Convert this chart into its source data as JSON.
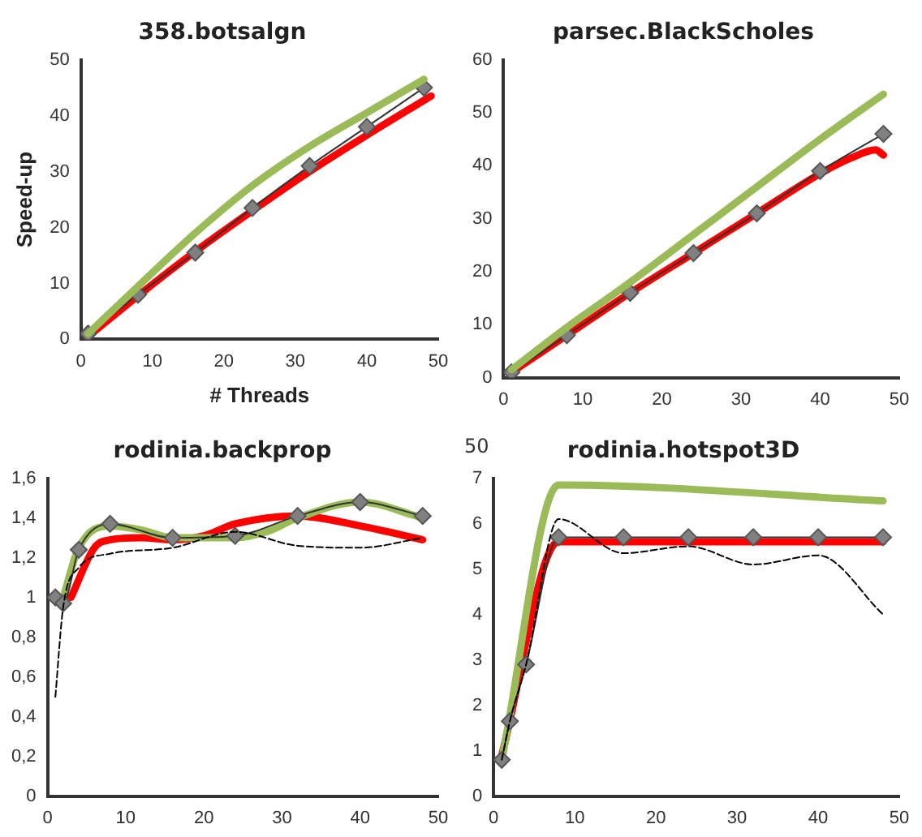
{
  "chart_data": [
    {
      "type": "line",
      "title": "358.botsalgn",
      "xlabel": "# Threads",
      "ylabel": "Speed-up",
      "xlim": [
        0,
        50
      ],
      "xticks": [
        0,
        10,
        20,
        30,
        40,
        50
      ],
      "ylim": [
        0,
        50
      ],
      "yticks": [
        0,
        10,
        20,
        30,
        40,
        50
      ],
      "grid": false,
      "legend": false,
      "series": [
        {
          "color": "#9bbb59",
          "marker": "none",
          "x": [
            1,
            8,
            16,
            24,
            32,
            40,
            48
          ],
          "values": [
            1,
            9.5,
            19,
            27.5,
            34.5,
            40.5,
            46.5
          ]
        },
        {
          "color": "#808080",
          "marker": "diamond",
          "x": [
            1,
            8,
            16,
            24,
            32,
            40,
            48
          ],
          "values": [
            1,
            8,
            15.5,
            23.5,
            31,
            38,
            45
          ]
        },
        {
          "color": "#ff0000",
          "marker": "none",
          "x": [
            1,
            8,
            16,
            24,
            32,
            40,
            49
          ],
          "values": [
            0.5,
            7.8,
            15.7,
            23,
            30,
            36.5,
            43.5
          ]
        }
      ]
    },
    {
      "type": "line",
      "title": "parsec.BlackScholes",
      "xlim": [
        0,
        50
      ],
      "xticks": [
        0,
        10,
        20,
        30,
        40,
        50
      ],
      "ylim": [
        0,
        60
      ],
      "yticks": [
        0,
        10,
        20,
        30,
        40,
        50,
        60
      ],
      "grid": false,
      "legend": false,
      "series": [
        {
          "color": "#9bbb59",
          "marker": "none",
          "x": [
            1,
            8,
            16,
            24,
            32,
            40,
            48
          ],
          "values": [
            1.5,
            9.5,
            18,
            27,
            36,
            45,
            53.5
          ]
        },
        {
          "color": "#808080",
          "marker": "diamond",
          "x": [
            1,
            8,
            16,
            24,
            32,
            40,
            48
          ],
          "values": [
            1,
            8,
            16,
            23.5,
            31,
            39,
            46
          ]
        },
        {
          "color": "#ff0000",
          "marker": "none",
          "x": [
            1,
            8,
            16,
            24,
            32,
            40,
            44,
            47,
            48
          ],
          "values": [
            1,
            8,
            16,
            23.5,
            31,
            38.5,
            41.5,
            43,
            42
          ]
        }
      ]
    },
    {
      "type": "line",
      "title": "rodinia.backprop",
      "xlim": [
        0,
        50
      ],
      "xticks": [
        0,
        10,
        20,
        30,
        40,
        50
      ],
      "ylim": [
        0,
        1.6
      ],
      "yticks": [
        0,
        {
          "value": 0.2,
          "label": "0,2"
        },
        {
          "value": 0.4,
          "label": "0,4"
        },
        {
          "value": 0.6,
          "label": "0,6"
        },
        {
          "value": 0.8,
          "label": "0,8"
        },
        1,
        {
          "value": 1.2,
          "label": "1,2"
        },
        {
          "value": 1.4,
          "label": "1,4"
        },
        {
          "value": 1.6,
          "label": "1,6"
        }
      ],
      "grid": false,
      "legend": false,
      "series": [
        {
          "color": "#000000",
          "marker": "none",
          "line_style": "dashed",
          "x": [
            1,
            2,
            4,
            8,
            16,
            24,
            32,
            40,
            48
          ],
          "values": [
            0.5,
            0.95,
            1.15,
            1.22,
            1.25,
            1.33,
            1.26,
            1.25,
            1.3
          ]
        },
        {
          "color": "#808080",
          "marker": "diamond",
          "x": [
            1,
            2,
            4,
            8,
            16,
            24,
            32,
            40,
            48
          ],
          "values": [
            1,
            0.97,
            1.24,
            1.37,
            1.3,
            1.31,
            1.41,
            1.48,
            1.41
          ]
        },
        {
          "color": "#9bbb59",
          "marker": "none",
          "x": [
            2,
            4,
            8,
            12,
            16,
            24,
            28,
            32,
            40,
            48
          ],
          "values": [
            1,
            1.25,
            1.36,
            1.34,
            1.3,
            1.3,
            1.33,
            1.4,
            1.48,
            1.4
          ]
        },
        {
          "color": "#ff0000",
          "marker": "none",
          "x": [
            3,
            6,
            8,
            12,
            16,
            20,
            24,
            32,
            40,
            48
          ],
          "values": [
            1,
            1.25,
            1.29,
            1.3,
            1.29,
            1.31,
            1.37,
            1.41,
            1.36,
            1.29
          ]
        }
      ]
    },
    {
      "type": "line",
      "title": "rodinia.hotspot3D",
      "annotations": [
        "50"
      ],
      "xlim": [
        0,
        50
      ],
      "xticks": [
        0,
        10,
        20,
        30,
        40,
        50
      ],
      "ylim": [
        0,
        7
      ],
      "yticks": [
        0,
        1,
        2,
        3,
        4,
        5,
        6,
        7
      ],
      "grid": false,
      "legend": false,
      "series": [
        {
          "color": "#000000",
          "marker": "none",
          "line_style": "dashed",
          "x": [
            1,
            2,
            4,
            8,
            16,
            24,
            32,
            40,
            48
          ],
          "values": [
            0.8,
            1.65,
            2.9,
            6.1,
            5.35,
            5.5,
            5.1,
            5.3,
            4.0
          ]
        },
        {
          "color": "#808080",
          "marker": "diamond",
          "x": [
            1,
            2,
            4,
            8,
            16,
            24,
            32,
            40,
            48
          ],
          "values": [
            0.8,
            1.65,
            2.9,
            5.7,
            5.7,
            5.7,
            5.7,
            5.7,
            5.7
          ]
        },
        {
          "color": "#9bbb59",
          "marker": "none",
          "x": [
            1,
            8,
            48
          ],
          "values": [
            0.8,
            6.85,
            6.5
          ]
        },
        {
          "color": "#ff0000",
          "marker": "none",
          "x": [
            1,
            8,
            48
          ],
          "values": [
            0.9,
            5.6,
            5.6
          ]
        }
      ]
    }
  ]
}
